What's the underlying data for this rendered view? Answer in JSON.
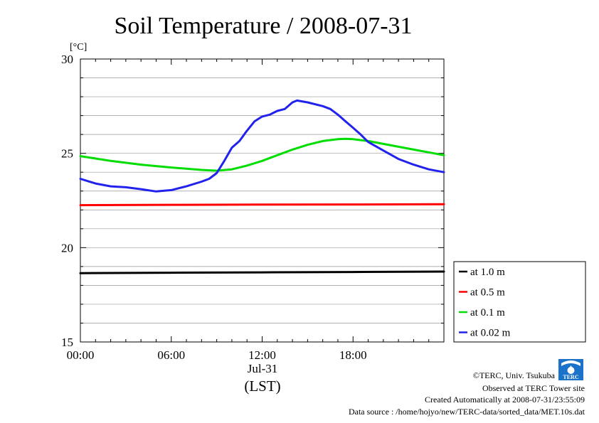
{
  "chart_data": {
    "type": "line",
    "title": "Soil Temperature / 2008-07-31",
    "ylabel": "[°C]",
    "xlabel": "(LST)",
    "date_label": "Jul-31",
    "xlim": [
      0,
      24
    ],
    "ylim": [
      15,
      30
    ],
    "x_ticks": [
      0,
      6,
      12,
      18
    ],
    "x_tick_labels": [
      "00:00",
      "06:00",
      "12:00",
      "18:00"
    ],
    "y_ticks": [
      15,
      20,
      25,
      30
    ],
    "y_tick_labels": [
      "15",
      "20",
      "25",
      "30"
    ],
    "grid": true,
    "legend_position": "right",
    "series": [
      {
        "name": "at 1.0 m",
        "color": "#000000",
        "points": [
          [
            0,
            18.65
          ],
          [
            6,
            18.67
          ],
          [
            12,
            18.69
          ],
          [
            18,
            18.71
          ],
          [
            24,
            18.73
          ]
        ]
      },
      {
        "name": "at 0.5 m",
        "color": "#ff0000",
        "points": [
          [
            0,
            22.25
          ],
          [
            6,
            22.27
          ],
          [
            12,
            22.28
          ],
          [
            18,
            22.29
          ],
          [
            24,
            22.3
          ]
        ]
      },
      {
        "name": "at 0.1 m",
        "color": "#00dd00",
        "points": [
          [
            0,
            24.85
          ],
          [
            2,
            24.6
          ],
          [
            4,
            24.4
          ],
          [
            6,
            24.25
          ],
          [
            8,
            24.12
          ],
          [
            9,
            24.08
          ],
          [
            10,
            24.15
          ],
          [
            11,
            24.35
          ],
          [
            12,
            24.6
          ],
          [
            13,
            24.9
          ],
          [
            14,
            25.2
          ],
          [
            15,
            25.45
          ],
          [
            16,
            25.65
          ],
          [
            17,
            25.75
          ],
          [
            17.5,
            25.77
          ],
          [
            18,
            25.75
          ],
          [
            19,
            25.65
          ],
          [
            20,
            25.5
          ],
          [
            21,
            25.35
          ],
          [
            22,
            25.2
          ],
          [
            23,
            25.05
          ],
          [
            24,
            24.9
          ]
        ]
      },
      {
        "name": "at 0.02 m",
        "color": "#2222ee",
        "points": [
          [
            0,
            23.65
          ],
          [
            1,
            23.4
          ],
          [
            2,
            23.25
          ],
          [
            3,
            23.2
          ],
          [
            4,
            23.1
          ],
          [
            5,
            22.98
          ],
          [
            6,
            23.05
          ],
          [
            7,
            23.25
          ],
          [
            8,
            23.5
          ],
          [
            8.5,
            23.65
          ],
          [
            9,
            23.95
          ],
          [
            9.5,
            24.6
          ],
          [
            10,
            25.3
          ],
          [
            10.5,
            25.65
          ],
          [
            11,
            26.2
          ],
          [
            11.5,
            26.7
          ],
          [
            12,
            26.95
          ],
          [
            12.5,
            27.05
          ],
          [
            13,
            27.25
          ],
          [
            13.5,
            27.35
          ],
          [
            14,
            27.7
          ],
          [
            14.3,
            27.8
          ],
          [
            15,
            27.7
          ],
          [
            16,
            27.5
          ],
          [
            16.5,
            27.35
          ],
          [
            17,
            27.05
          ],
          [
            17.5,
            26.7
          ],
          [
            18,
            26.35
          ],
          [
            18.5,
            26.0
          ],
          [
            19,
            25.6
          ],
          [
            20,
            25.15
          ],
          [
            21,
            24.7
          ],
          [
            22,
            24.4
          ],
          [
            23,
            24.15
          ],
          [
            24,
            24.0
          ]
        ]
      }
    ]
  },
  "credits": {
    "copyright": "©TERC, Univ. Tsukuba",
    "observed": "Observed at TERC Tower site",
    "created": "Created Automatically at 2008-07-31/23:55:09",
    "source": "Data source : /home/hojyo/new/TERC-data/sorted_data/MET.10s.dat",
    "logo_text": "TERC"
  }
}
